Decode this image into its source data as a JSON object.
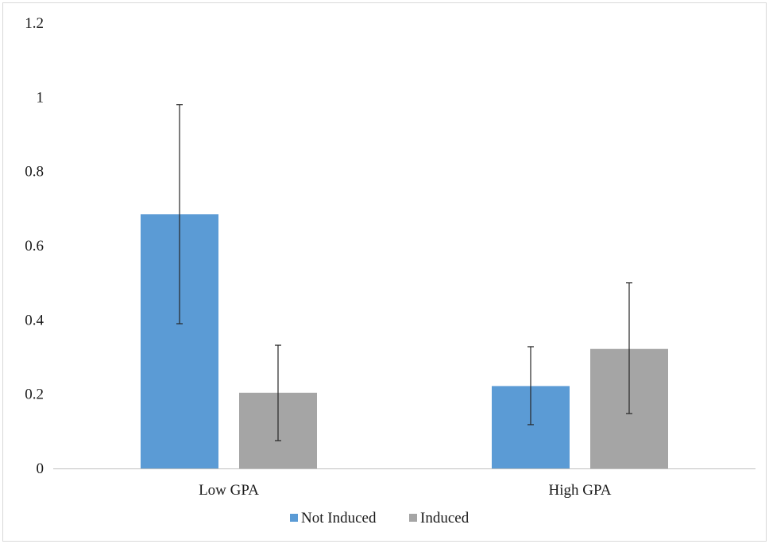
{
  "chart_data": {
    "type": "bar",
    "categories": [
      "Low GPA",
      "High GPA"
    ],
    "series": [
      {
        "name": "Not Induced",
        "color": "#5b9bd5",
        "values": [
          0.685,
          0.222
        ],
        "error_low": [
          0.39,
          0.118
        ],
        "error_high": [
          0.98,
          0.328
        ]
      },
      {
        "name": "Induced",
        "color": "#a5a5a5",
        "values": [
          0.204,
          0.322
        ],
        "error_low": [
          0.075,
          0.148
        ],
        "error_high": [
          0.332,
          0.5
        ]
      }
    ],
    "ylim": [
      0,
      1.2
    ],
    "yticks": [
      "0",
      "0.2",
      "0.4",
      "0.6",
      "0.8",
      "1",
      "1.2"
    ],
    "title": "",
    "xlabel": "",
    "ylabel": "",
    "grid": false,
    "legend_position": "bottom",
    "axis_color": "#bfbfbf",
    "error_bar_color": "#262626"
  }
}
